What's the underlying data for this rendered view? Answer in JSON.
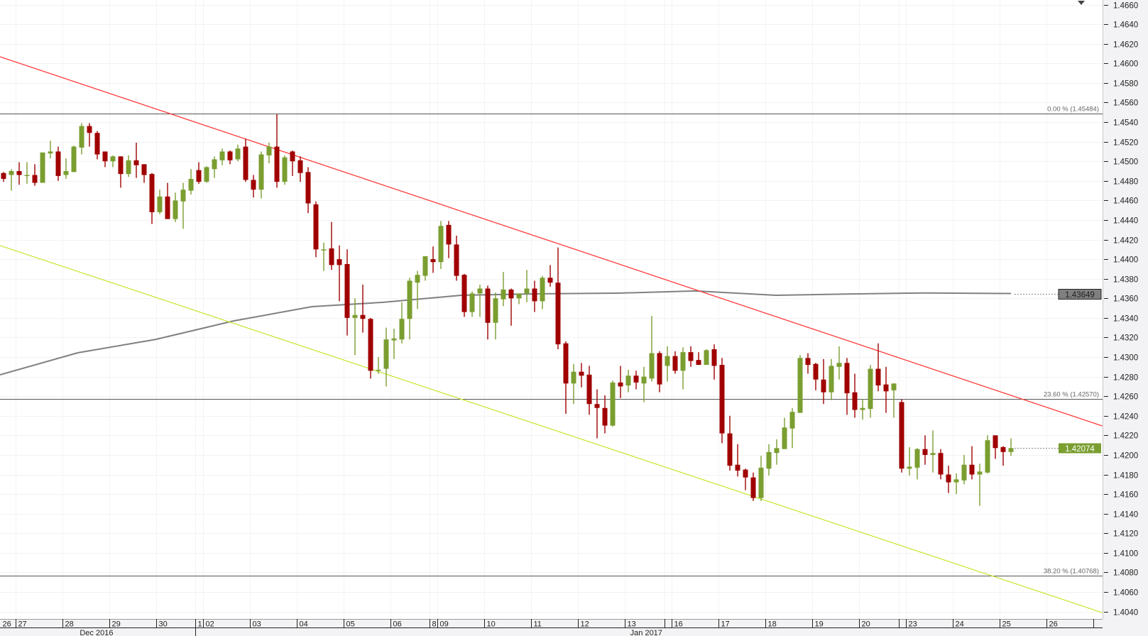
{
  "chart_data": {
    "type": "candlestick",
    "title": "",
    "ylim": [
      1.404,
      1.466
    ],
    "y_step": 0.002,
    "y_ticks": [
      "1.4040",
      "1.4060",
      "1.4080",
      "1.4100",
      "1.4120",
      "1.4140",
      "1.4160",
      "1.4180",
      "1.4200",
      "1.4220",
      "1.4240",
      "1.4260",
      "1.4280",
      "1.4300",
      "1.4320",
      "1.4340",
      "1.4360",
      "1.4380",
      "1.4400",
      "1.4420",
      "1.4440",
      "1.4460",
      "1.4480",
      "1.4500",
      "1.4520",
      "1.4540",
      "1.4560",
      "1.4580",
      "1.4600",
      "1.4620",
      "1.4640",
      "1.4660"
    ],
    "grid": true,
    "colors": {
      "up": "#7a9e30",
      "down": "#a00000",
      "resistance": "#ff3b3b",
      "support": "#c8e83c",
      "moving_average": "#808080",
      "fib": "#555555"
    },
    "candle_format": [
      "open",
      "high",
      "low",
      "close"
    ],
    "candles": [
      [
        1.4488,
        1.4489,
        1.4479,
        1.4482
      ],
      [
        1.4486,
        1.4492,
        1.447,
        1.449
      ],
      [
        1.449,
        1.4499,
        1.4476,
        1.4486
      ],
      [
        1.4486,
        1.4499,
        1.4477,
        1.4486
      ],
      [
        1.4486,
        1.4497,
        1.4475,
        1.4478
      ],
      [
        1.4478,
        1.4509,
        1.4478,
        1.4509
      ],
      [
        1.4508,
        1.4521,
        1.4503,
        1.451
      ],
      [
        1.451,
        1.4515,
        1.448,
        1.4485
      ],
      [
        1.4486,
        1.4503,
        1.4482,
        1.449
      ],
      [
        1.4489,
        1.4516,
        1.4489,
        1.4515
      ],
      [
        1.4514,
        1.4539,
        1.4507,
        1.4536
      ],
      [
        1.4536,
        1.4539,
        1.4515,
        1.4529
      ],
      [
        1.4529,
        1.4531,
        1.4502,
        1.4507
      ],
      [
        1.451,
        1.451,
        1.4494,
        1.45
      ],
      [
        1.45,
        1.4506,
        1.4494,
        1.4505
      ],
      [
        1.4505,
        1.4505,
        1.4473,
        1.4487
      ],
      [
        1.4487,
        1.4506,
        1.4484,
        1.4501
      ],
      [
        1.4501,
        1.4519,
        1.4483,
        1.4496
      ],
      [
        1.4497,
        1.4497,
        1.4478,
        1.4486
      ],
      [
        1.4487,
        1.4488,
        1.4436,
        1.4448
      ],
      [
        1.4448,
        1.4471,
        1.4446,
        1.4464
      ],
      [
        1.4464,
        1.4478,
        1.4441,
        1.4441
      ],
      [
        1.4441,
        1.4468,
        1.4438,
        1.446
      ],
      [
        1.4459,
        1.4478,
        1.4431,
        1.4471
      ],
      [
        1.447,
        1.4492,
        1.4466,
        1.4482
      ],
      [
        1.4491,
        1.4499,
        1.4477,
        1.4479
      ],
      [
        1.4479,
        1.4495,
        1.4478,
        1.4494
      ],
      [
        1.4492,
        1.4505,
        1.4483,
        1.4502
      ],
      [
        1.4501,
        1.4513,
        1.4496,
        1.451
      ],
      [
        1.451,
        1.4511,
        1.4497,
        1.4501
      ],
      [
        1.4502,
        1.4517,
        1.45,
        1.4513
      ],
      [
        1.4515,
        1.4523,
        1.4479,
        1.4481
      ],
      [
        1.4481,
        1.4486,
        1.4463,
        1.4471
      ],
      [
        1.4471,
        1.451,
        1.4462,
        1.4507
      ],
      [
        1.4506,
        1.4519,
        1.4498,
        1.4515
      ],
      [
        1.4515,
        1.4548,
        1.4473,
        1.4479
      ],
      [
        1.4479,
        1.4506,
        1.4476,
        1.4504
      ],
      [
        1.451,
        1.4511,
        1.4485,
        1.45
      ],
      [
        1.4501,
        1.4505,
        1.4479,
        1.4488
      ],
      [
        1.4489,
        1.4494,
        1.4447,
        1.4457
      ],
      [
        1.4456,
        1.4459,
        1.4402,
        1.441
      ],
      [
        1.441,
        1.4417,
        1.4388,
        1.441
      ],
      [
        1.4411,
        1.4438,
        1.4389,
        1.4394
      ],
      [
        1.44,
        1.4414,
        1.4357,
        1.4394
      ],
      [
        1.4395,
        1.441,
        1.4322,
        1.434
      ],
      [
        1.434,
        1.436,
        1.4302,
        1.4343
      ],
      [
        1.4343,
        1.4374,
        1.4325,
        1.4339
      ],
      [
        1.4339,
        1.434,
        1.4278,
        1.4286
      ],
      [
        1.4286,
        1.43,
        1.4283,
        1.4287
      ],
      [
        1.4288,
        1.433,
        1.427,
        1.4318
      ],
      [
        1.4317,
        1.4329,
        1.4298,
        1.4319
      ],
      [
        1.4318,
        1.4356,
        1.4314,
        1.4339
      ],
      [
        1.4339,
        1.4381,
        1.4318,
        1.4378
      ],
      [
        1.4376,
        1.4388,
        1.4349,
        1.4384
      ],
      [
        1.4383,
        1.4403,
        1.4378,
        1.4403
      ],
      [
        1.44,
        1.4413,
        1.4386,
        1.4397
      ],
      [
        1.4397,
        1.4439,
        1.439,
        1.4434
      ],
      [
        1.4435,
        1.4439,
        1.4401,
        1.4415
      ],
      [
        1.4415,
        1.4424,
        1.4378,
        1.4383
      ],
      [
        1.4384,
        1.4385,
        1.4341,
        1.4346
      ],
      [
        1.4346,
        1.4367,
        1.4341,
        1.4365
      ],
      [
        1.4365,
        1.4374,
        1.4341,
        1.437
      ],
      [
        1.437,
        1.4373,
        1.4318,
        1.4335
      ],
      [
        1.4335,
        1.4366,
        1.4318,
        1.436
      ],
      [
        1.4359,
        1.4387,
        1.4352,
        1.4369
      ],
      [
        1.4369,
        1.437,
        1.4332,
        1.436
      ],
      [
        1.436,
        1.4365,
        1.4354,
        1.4365
      ],
      [
        1.4365,
        1.4389,
        1.4356,
        1.437
      ],
      [
        1.437,
        1.4378,
        1.4346,
        1.4357
      ],
      [
        1.4357,
        1.4383,
        1.4349,
        1.4381
      ],
      [
        1.4381,
        1.4394,
        1.4372,
        1.4376
      ],
      [
        1.4376,
        1.4412,
        1.4308,
        1.4313
      ],
      [
        1.4314,
        1.4316,
        1.4242,
        1.4273
      ],
      [
        1.4273,
        1.4293,
        1.4252,
        1.4285
      ],
      [
        1.4285,
        1.4294,
        1.4269,
        1.4281
      ],
      [
        1.4282,
        1.4291,
        1.4241,
        1.4252
      ],
      [
        1.4252,
        1.4267,
        1.4217,
        1.4248
      ],
      [
        1.4248,
        1.4261,
        1.4222,
        1.423
      ],
      [
        1.423,
        1.4276,
        1.4229,
        1.4274
      ],
      [
        1.4274,
        1.4291,
        1.4258,
        1.427
      ],
      [
        1.4271,
        1.4287,
        1.4264,
        1.4281
      ],
      [
        1.4281,
        1.4286,
        1.4267,
        1.4274
      ],
      [
        1.4273,
        1.429,
        1.4254,
        1.428
      ],
      [
        1.4278,
        1.4342,
        1.4275,
        1.4304
      ],
      [
        1.4304,
        1.4306,
        1.4264,
        1.4272
      ],
      [
        1.4291,
        1.4311,
        1.4275,
        1.4301
      ],
      [
        1.4301,
        1.4306,
        1.4283,
        1.4286
      ],
      [
        1.4286,
        1.431,
        1.4267,
        1.4305
      ],
      [
        1.4305,
        1.4311,
        1.429,
        1.4296
      ],
      [
        1.4297,
        1.4305,
        1.4292,
        1.4292
      ],
      [
        1.4292,
        1.4308,
        1.4292,
        1.4307
      ],
      [
        1.4308,
        1.4313,
        1.4277,
        1.4291
      ],
      [
        1.4292,
        1.4299,
        1.4212,
        1.4222
      ],
      [
        1.4222,
        1.424,
        1.4184,
        1.4189
      ],
      [
        1.419,
        1.4211,
        1.4178,
        1.4184
      ],
      [
        1.4185,
        1.4186,
        1.4164,
        1.4177
      ],
      [
        1.4177,
        1.4182,
        1.4153,
        1.4156
      ],
      [
        1.4156,
        1.4199,
        1.4153,
        1.4187
      ],
      [
        1.4186,
        1.4211,
        1.4179,
        1.4203
      ],
      [
        1.4202,
        1.4216,
        1.419,
        1.4207
      ],
      [
        1.4206,
        1.4238,
        1.4206,
        1.4228
      ],
      [
        1.4227,
        1.4248,
        1.4207,
        1.4244
      ],
      [
        1.4243,
        1.4302,
        1.4243,
        1.4299
      ],
      [
        1.4299,
        1.4304,
        1.4283,
        1.4292
      ],
      [
        1.4293,
        1.4294,
        1.4266,
        1.4277
      ],
      [
        1.4277,
        1.4298,
        1.4252,
        1.4264
      ],
      [
        1.4264,
        1.4298,
        1.4256,
        1.4291
      ],
      [
        1.429,
        1.4311,
        1.4277,
        1.4294
      ],
      [
        1.4294,
        1.4299,
        1.4241,
        1.4263
      ],
      [
        1.4264,
        1.4283,
        1.4238,
        1.4246
      ],
      [
        1.4246,
        1.4257,
        1.4236,
        1.4248
      ],
      [
        1.4247,
        1.4292,
        1.4238,
        1.4288
      ],
      [
        1.4288,
        1.4314,
        1.4265,
        1.4271
      ],
      [
        1.4272,
        1.429,
        1.4243,
        1.4265
      ],
      [
        1.4266,
        1.4273,
        1.4238,
        1.4273
      ],
      [
        1.4254,
        1.4257,
        1.4182,
        1.4186
      ],
      [
        1.4186,
        1.4208,
        1.4179,
        1.4188
      ],
      [
        1.4187,
        1.4207,
        1.4175,
        1.4206
      ],
      [
        1.4206,
        1.422,
        1.419,
        1.42
      ],
      [
        1.42,
        1.4225,
        1.4182,
        1.4202
      ],
      [
        1.4202,
        1.4206,
        1.4175,
        1.418
      ],
      [
        1.418,
        1.4189,
        1.4161,
        1.4172
      ],
      [
        1.4172,
        1.4181,
        1.416,
        1.4175
      ],
      [
        1.4174,
        1.42,
        1.417,
        1.419
      ],
      [
        1.419,
        1.4209,
        1.4175,
        1.418
      ],
      [
        1.418,
        1.4191,
        1.4148,
        1.4183
      ],
      [
        1.4182,
        1.422,
        1.4181,
        1.4215
      ],
      [
        1.422,
        1.422,
        1.4196,
        1.4207
      ],
      [
        1.4208,
        1.4209,
        1.4189,
        1.4203
      ],
      [
        1.4203,
        1.4217,
        1.4199,
        1.4207
      ]
    ],
    "moving_average": [
      [
        -0.5,
        1.42819
      ],
      [
        9.5,
        1.43044
      ],
      [
        19.5,
        1.43181
      ],
      [
        29.5,
        1.4337
      ],
      [
        39.5,
        1.43515
      ],
      [
        48.6,
        1.43559
      ],
      [
        58.6,
        1.43631
      ],
      [
        68.6,
        1.43646
      ],
      [
        78.6,
        1.43653
      ],
      [
        88.6,
        1.43675
      ],
      [
        98.9,
        1.43631
      ],
      [
        108.6,
        1.43645
      ],
      [
        118,
        1.43655
      ],
      [
        129,
        1.43649
      ]
    ],
    "trendlines": [
      {
        "name": "resistance",
        "points": [
          [
            -0.45,
            1.46068
          ],
          [
            140.7,
            1.42296
          ]
        ]
      },
      {
        "name": "support",
        "points": [
          [
            -0.45,
            1.44139
          ],
          [
            140.7,
            1.40389
          ]
        ]
      }
    ],
    "fib_levels": [
      {
        "label": "0.00 % (1.45484)",
        "value": 1.45484
      },
      {
        "label": "23.60 % (1.42570)",
        "value": 1.4257
      },
      {
        "label": "38.20 % (1.40768)",
        "value": 1.40768
      }
    ],
    "ma_last": {
      "label": "1.43649",
      "value": 1.43649
    },
    "last_price": {
      "label": "1.42074",
      "value": 1.42074
    },
    "x_ticks": [
      {
        "label": "26",
        "at": -0.5
      },
      {
        "label": "27",
        "at": 1.5
      },
      {
        "label": "28",
        "at": 7.5
      },
      {
        "label": "29",
        "at": 13.5
      },
      {
        "label": "30",
        "at": 19.5
      },
      {
        "label": "1",
        "at": 24.5
      },
      {
        "label": "02",
        "at": 25.5
      },
      {
        "label": "03",
        "at": 31.5
      },
      {
        "label": "04",
        "at": 37.5
      },
      {
        "label": "05",
        "at": 43.5
      },
      {
        "label": "06",
        "at": 49.5
      },
      {
        "label": "8",
        "at": 54.5
      },
      {
        "label": "09",
        "at": 55.5
      },
      {
        "label": "10",
        "at": 61.5
      },
      {
        "label": "11",
        "at": 67.5
      },
      {
        "label": "12",
        "at": 73.5
      },
      {
        "label": "13",
        "at": 79.5
      },
      {
        "label": "",
        "at": 84.6
      },
      {
        "label": "16",
        "at": 85.5
      },
      {
        "label": "17",
        "at": 91.5
      },
      {
        "label": "18",
        "at": 97.5
      },
      {
        "label": "19",
        "at": 103.5
      },
      {
        "label": "20",
        "at": 109.5
      },
      {
        "label": "",
        "at": 114.6
      },
      {
        "label": "23",
        "at": 115.5
      },
      {
        "label": "24",
        "at": 121.5
      },
      {
        "label": "25",
        "at": 127.5
      },
      {
        "label": "26",
        "at": 133.5
      }
    ],
    "months": [
      {
        "label": "Dec 2016",
        "center": 11.9,
        "end": 24.5
      },
      {
        "label": "Jan 2017",
        "center": 82.3
      }
    ]
  }
}
